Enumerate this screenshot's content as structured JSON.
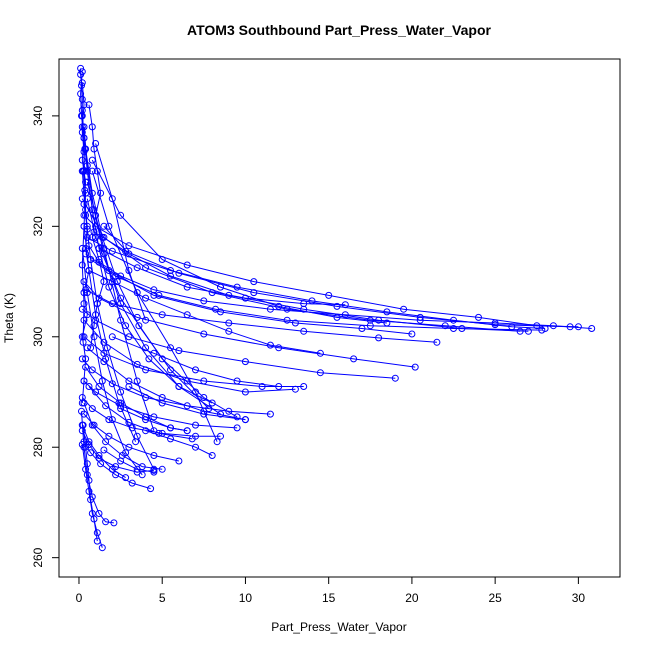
{
  "chart_data": {
    "type": "line",
    "title": "ATOM3 Southbound Part_Press_Water_Vapor",
    "xlabel": "Part_Press_Water_Vapor",
    "ylabel": "Theta (K)",
    "xlim": [
      -1.2,
      32.5
    ],
    "ylim": [
      256.5,
      350.3
    ],
    "xticks": [
      0,
      5,
      10,
      15,
      20,
      25,
      30
    ],
    "yticks": [
      260,
      280,
      300,
      320,
      340
    ],
    "marker": "open-circle",
    "color": "#0000ff",
    "grid": false,
    "series": [
      {
        "x": [
          0.1,
          0.1,
          0.15,
          0.2,
          0.2,
          0.2,
          0.3,
          0.3,
          0.35,
          0.4,
          0.5,
          0.6,
          1.2,
          2.5,
          4.5,
          7.5,
          11.5,
          16.0,
          20.5,
          25.0,
          28.5,
          30.8
        ],
        "y": [
          348.6,
          347.5,
          345.5,
          343.0,
          340.0,
          337.0,
          333.5,
          330.0,
          326.5,
          323.0,
          319.5,
          316.5,
          313.5,
          311.0,
          308.5,
          306.5,
          305.0,
          304.0,
          303.0,
          302.5,
          302.0,
          301.5
        ]
      },
      {
        "x": [
          0.3,
          1.0,
          3.0,
          6.5,
          10.5,
          15.0,
          19.5,
          24.0,
          27.5,
          30.0
        ],
        "y": [
          322.0,
          320.0,
          316.5,
          313.0,
          310.0,
          307.5,
          305.0,
          303.5,
          302.0,
          301.8
        ]
      },
      {
        "x": [
          0.5,
          2.0,
          5.5,
          9.5,
          14.0,
          18.5,
          22.5,
          26.0,
          28.0
        ],
        "y": [
          318.0,
          315.5,
          312.0,
          309.0,
          306.5,
          304.5,
          303.0,
          301.8,
          301.5
        ]
      },
      {
        "x": [
          0.2,
          1.5,
          4.0,
          8.0,
          12.5,
          17.5,
          22.0,
          26.5
        ],
        "y": [
          325.0,
          318.0,
          312.5,
          308.0,
          305.0,
          303.0,
          302.0,
          301.0
        ]
      },
      {
        "x": [
          0.4,
          1.8,
          4.5,
          8.5,
          13.0,
          17.0,
          20.0
        ],
        "y": [
          315.0,
          312.0,
          307.5,
          304.5,
          302.5,
          301.5,
          300.5
        ]
      },
      {
        "x": [
          0.3,
          1.2,
          3.5,
          7.5,
          12.0,
          16.5,
          20.2
        ],
        "y": [
          310.0,
          307.0,
          303.5,
          300.5,
          298.0,
          296.0,
          294.5
        ]
      },
      {
        "x": [
          0.2,
          1.0,
          3.0,
          6.0,
          10.0,
          14.5,
          19.0
        ],
        "y": [
          305.0,
          303.0,
          300.0,
          297.5,
          295.5,
          293.5,
          292.5
        ]
      },
      {
        "x": [
          0.3,
          1.5,
          4.0,
          7.5,
          11.0,
          13.5
        ],
        "y": [
          300.0,
          297.0,
          294.0,
          292.0,
          291.0,
          291.0
        ]
      },
      {
        "x": [
          0.2,
          0.8,
          2.0,
          4.0,
          6.5,
          9.0,
          11.5
        ],
        "y": [
          296.0,
          294.0,
          291.5,
          289.0,
          287.5,
          286.5,
          286.0
        ]
      },
      {
        "x": [
          0.3,
          1.0,
          2.5,
          4.5,
          7.0,
          9.5
        ],
        "y": [
          292.0,
          290.0,
          287.5,
          285.5,
          284.0,
          283.5
        ]
      },
      {
        "x": [
          0.2,
          0.8,
          1.8,
          3.2,
          5.0,
          7.0,
          8.5
        ],
        "y": [
          289.0,
          287.0,
          285.0,
          283.5,
          282.5,
          282.0,
          282.0
        ]
      },
      {
        "x": [
          0.3,
          0.9,
          1.8,
          3.0,
          4.5,
          6.0
        ],
        "y": [
          286.0,
          284.0,
          282.0,
          280.0,
          278.5,
          277.5
        ]
      },
      {
        "x": [
          0.2,
          0.6,
          1.2,
          2.2,
          3.5,
          4.5
        ],
        "y": [
          283.0,
          280.5,
          278.0,
          276.5,
          275.5,
          275.8
        ]
      },
      {
        "x": [
          0.3,
          0.7,
          1.3,
          2.2,
          3.2,
          4.3
        ],
        "y": [
          281.0,
          279.0,
          277.0,
          275.0,
          273.5,
          272.5
        ]
      },
      {
        "x": [
          0.15,
          0.3,
          0.5,
          0.8,
          1.2,
          1.6,
          2.1
        ],
        "y": [
          286.5,
          280.0,
          275.0,
          271.0,
          268.0,
          266.5,
          266.3
        ]
      },
      {
        "x": [
          0.2,
          0.4,
          0.6,
          0.8,
          1.1,
          1.4
        ],
        "y": [
          280.5,
          276.0,
          272.0,
          268.0,
          264.5,
          261.8
        ]
      },
      {
        "x": [
          0.25,
          0.4,
          0.5,
          0.6,
          0.7,
          0.9,
          1.1
        ],
        "y": [
          284.0,
          280.0,
          277.0,
          274.0,
          270.5,
          267.0,
          263.0
        ]
      },
      {
        "x": [
          0.5,
          1.0,
          2.5,
          5.0,
          7.5,
          9.5
        ],
        "y": [
          325.0,
          318.0,
          307.0,
          296.0,
          289.0,
          285.5
        ]
      },
      {
        "x": [
          0.8,
          1.8,
          3.5,
          5.5,
          7.0,
          8.3
        ],
        "y": [
          330.0,
          320.0,
          308.0,
          298.0,
          290.0,
          281.0
        ]
      },
      {
        "x": [
          1.0,
          2.0,
          3.0,
          4.0
        ],
        "y": [
          335.0,
          325.0,
          312.0,
          303.0
        ]
      },
      {
        "x": [
          0.5,
          1.5,
          2.5,
          3.5,
          4.5
        ],
        "y": [
          328.0,
          316.0,
          303.0,
          292.0,
          283.0
        ]
      },
      {
        "x": [
          0.6,
          2.0,
          4.0,
          6.5,
          9.0,
          11.5,
          14.5
        ],
        "y": [
          312.0,
          310.0,
          307.0,
          304.0,
          301.0,
          298.5,
          297.0
        ]
      },
      {
        "x": [
          0.4,
          2.0,
          5.0,
          9.0,
          13.5,
          18.0,
          21.5
        ],
        "y": [
          308.5,
          306.0,
          304.0,
          302.5,
          301.0,
          299.8,
          299.0
        ]
      },
      {
        "x": [
          0.3,
          1.5,
          3.5,
          6.5,
          10.0,
          13.0
        ],
        "y": [
          303.0,
          299.0,
          295.0,
          292.0,
          290.0,
          290.5
        ]
      },
      {
        "x": [
          0.5,
          1.5,
          3.0,
          5.0,
          7.5,
          10.0
        ],
        "y": [
          298.0,
          295.5,
          292.0,
          289.0,
          286.5,
          285.0
        ]
      },
      {
        "x": [
          0.4,
          1.2,
          2.5,
          4.0,
          5.5,
          6.5
        ],
        "y": [
          294.5,
          291.0,
          288.0,
          285.5,
          283.5,
          283.0
        ]
      },
      {
        "x": [
          0.6,
          1.6,
          3.0,
          4.8,
          6.8
        ],
        "y": [
          291.0,
          287.5,
          284.5,
          282.5,
          281.5
        ]
      },
      {
        "x": [
          0.3,
          0.8,
          1.6,
          2.6,
          3.8,
          5.0
        ],
        "y": [
          288.0,
          284.0,
          281.0,
          278.5,
          276.5,
          276.0
        ]
      },
      {
        "x": [
          0.2,
          0.6,
          1.2,
          2.0,
          2.8
        ],
        "y": [
          284.0,
          281.0,
          278.5,
          276.0,
          274.5
        ]
      },
      {
        "x": [
          0.8,
          2.5,
          5.0,
          8.5,
          12.0,
          15.5,
          18.5
        ],
        "y": [
          332.0,
          322.0,
          314.0,
          309.0,
          305.5,
          303.5,
          302.5
        ]
      },
      {
        "x": [
          1.5,
          3.0,
          5.5,
          9.0,
          13.5,
          18.0,
          23.0,
          27.0
        ],
        "y": [
          320.0,
          315.0,
          311.0,
          307.5,
          305.0,
          303.0,
          301.5,
          301.0
        ]
      },
      {
        "x": [
          0.2,
          0.3,
          0.5,
          0.8,
          1.2,
          1.8,
          2.8,
          4.2,
          6.0,
          8.0
        ],
        "y": [
          341.0,
          336.0,
          330.0,
          323.0,
          316.0,
          309.0,
          302.0,
          296.0,
          291.0,
          288.0
        ]
      },
      {
        "x": [
          0.3,
          0.5,
          0.9,
          1.5,
          2.5,
          4.0,
          6.0,
          8.5
        ],
        "y": [
          338.0,
          331.0,
          323.0,
          315.0,
          306.0,
          298.0,
          291.0,
          286.0
        ]
      },
      {
        "x": [
          0.4,
          0.8,
          1.4,
          2.3,
          3.6,
          5.5,
          7.8
        ],
        "y": [
          334.0,
          326.0,
          318.0,
          310.0,
          302.0,
          294.0,
          287.0
        ]
      },
      {
        "x": [
          0.2,
          0.4,
          0.7,
          1.1,
          1.7,
          2.5,
          3.5,
          4.5
        ],
        "y": [
          330.0,
          322.0,
          314.0,
          306.0,
          298.0,
          290.0,
          282.0,
          276.0
        ]
      },
      {
        "x": [
          0.3,
          0.6,
          1.0,
          1.6,
          2.4,
          3.4
        ],
        "y": [
          320.0,
          312.0,
          304.0,
          296.0,
          288.0,
          281.0
        ]
      },
      {
        "x": [
          0.2,
          0.5,
          0.9,
          1.4,
          2.0,
          2.8,
          3.8
        ],
        "y": [
          316.0,
          308.0,
          300.0,
          292.0,
          285.0,
          279.0,
          275.0
        ]
      },
      {
        "x": [
          1.2,
          3.5,
          6.5,
          10.0,
          13.5,
          16.0
        ],
        "y": [
          316.0,
          312.5,
          309.0,
          307.0,
          306.0,
          305.8
        ]
      },
      {
        "x": [
          0.9,
          2.8,
          6.0,
          10.5,
          15.5,
          20.5,
          25.0,
          29.5
        ],
        "y": [
          319.0,
          315.5,
          311.5,
          308.0,
          305.5,
          303.5,
          302.2,
          301.8
        ]
      },
      {
        "x": [
          0.7,
          2.2,
          4.8,
          8.2,
          12.5,
          17.5,
          22.5,
          27.8
        ],
        "y": [
          314.0,
          311.0,
          307.5,
          305.0,
          303.0,
          302.0,
          301.5,
          301.2
        ]
      },
      {
        "x": [
          0.2,
          0.1,
          0.15,
          0.3,
          0.2,
          0.4,
          0.3,
          0.5,
          0.4,
          0.6,
          0.3,
          0.5,
          0.2,
          0.4,
          0.3,
          0.2
        ],
        "y": [
          348.0,
          344.0,
          340.0,
          336.0,
          332.0,
          328.0,
          324.0,
          320.0,
          316.0,
          312.0,
          308.0,
          304.0,
          300.0,
          296.0,
          292.0,
          288.0
        ]
      },
      {
        "x": [
          0.6,
          0.8,
          0.9,
          1.1,
          1.3,
          1.0,
          0.8,
          1.2,
          1.5,
          1.1,
          0.9,
          0.7
        ],
        "y": [
          342.0,
          338.0,
          334.0,
          330.0,
          326.0,
          322.0,
          318.0,
          314.0,
          310.0,
          306.0,
          302.0,
          298.0
        ]
      },
      {
        "x": [
          0.2,
          0.3,
          0.2,
          0.35,
          0.25,
          0.4,
          0.3,
          0.2,
          0.3,
          0.25
        ],
        "y": [
          346.0,
          342.0,
          338.0,
          334.0,
          330.0,
          326.0,
          320.0,
          313.0,
          306.0,
          299.0
        ]
      },
      {
        "x": [
          2.0,
          4.5,
          7.0,
          9.5,
          12.0
        ],
        "y": [
          300.0,
          297.0,
          294.0,
          292.0,
          291.0
        ]
      },
      {
        "x": [
          3.0,
          5.0,
          7.5,
          10.0
        ],
        "y": [
          291.0,
          288.0,
          286.0,
          285.0
        ]
      },
      {
        "x": [
          2.5,
          4.0,
          5.5,
          6.5
        ],
        "y": [
          287.0,
          285.0,
          283.5,
          283.0
        ]
      },
      {
        "x": [
          4.0,
          5.5,
          7.0,
          8.0
        ],
        "y": [
          283.0,
          281.5,
          280.0,
          278.5
        ]
      },
      {
        "x": [
          1.5,
          2.5,
          3.5,
          4.5
        ],
        "y": [
          279.5,
          277.5,
          276.0,
          275.5
        ]
      }
    ]
  }
}
